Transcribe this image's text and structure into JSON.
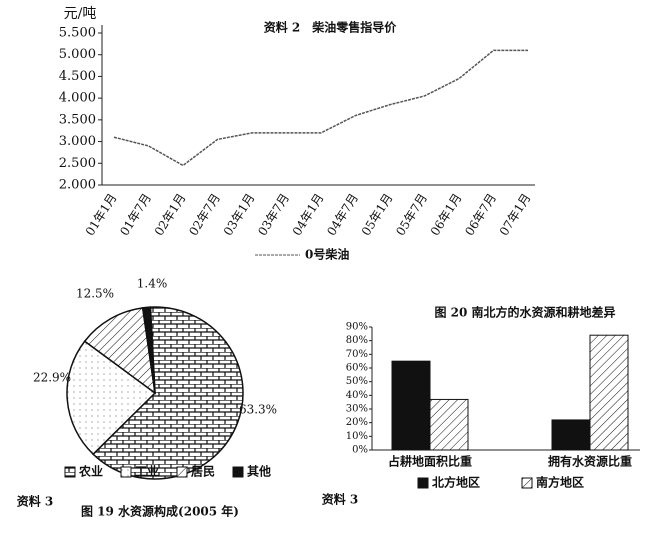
{
  "chart_data": [
    {
      "type": "line",
      "title": "资料 2　柴油零售指导价",
      "y_label": "元/吨",
      "categories": [
        "01年1月",
        "01年7月",
        "02年1月",
        "02年7月",
        "03年1月",
        "03年7月",
        "04年1月",
        "04年7月",
        "05年1月",
        "05年7月",
        "06年1月",
        "06年7月",
        "07年1月"
      ],
      "series": [
        {
          "name": "0号柴油",
          "color": "#555555",
          "values": [
            3.1,
            2.9,
            2.45,
            3.05,
            3.2,
            3.2,
            3.2,
            3.6,
            3.85,
            4.05,
            4.45,
            5.1,
            5.1
          ]
        }
      ],
      "ylim": [
        2,
        5.5
      ],
      "yticks": [
        {
          "value": 2,
          "label": "2.000"
        },
        {
          "value": 2.5,
          "label": "2.500"
        },
        {
          "value": 3,
          "label": "3.000"
        },
        {
          "value": 3.5,
          "label": "3.500"
        },
        {
          "value": 4,
          "label": "4.000"
        },
        {
          "value": 4.5,
          "label": "4.500"
        },
        {
          "value": 5,
          "label": "5.000"
        },
        {
          "value": 5.5,
          "label": "5.500"
        }
      ]
    },
    {
      "type": "pie",
      "title": "图 19 水资源构成(2005 年)",
      "source": "资料 3",
      "categories": [
        "农业",
        "工业",
        "居民",
        "其他"
      ],
      "values": [
        63.3,
        22.9,
        12.5,
        1.4
      ],
      "value_labels": [
        "63.3%",
        "22.9%",
        "12.5%",
        "1.4%"
      ]
    },
    {
      "type": "bar",
      "title": "图 20 南北方的水资源和耕地差异",
      "source": "资料 3",
      "categories": [
        "占耕地面积比重",
        "拥有水资源比重"
      ],
      "series": [
        {
          "name": "北方地区",
          "color": "#111111",
          "values": [
            65,
            22
          ]
        },
        {
          "name": "南方地区",
          "color": "#ffffff",
          "values": [
            37,
            84
          ]
        }
      ],
      "ylim": [
        0,
        90
      ],
      "yticks": [
        {
          "value": 0,
          "label": "0%"
        },
        {
          "value": 10,
          "label": "10%"
        },
        {
          "value": 20,
          "label": "20%"
        },
        {
          "value": 30,
          "label": "30%"
        },
        {
          "value": 40,
          "label": "40%"
        },
        {
          "value": 50,
          "label": "50%"
        },
        {
          "value": 60,
          "label": "60%"
        },
        {
          "value": 70,
          "label": "70%"
        },
        {
          "value": 80,
          "label": "80%"
        },
        {
          "value": 90,
          "label": "90%"
        }
      ]
    }
  ]
}
